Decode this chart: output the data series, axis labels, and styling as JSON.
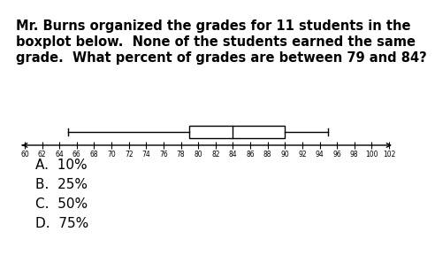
{
  "title_line1": "Mr. Burns organized the grades for 11 students in the",
  "title_line2": "boxplot below.  None of the students earned the same",
  "title_line3": "grade.  What percent of grades are between 79 and 84?",
  "whisker_min": 65,
  "q1": 79,
  "median": 84,
  "q3": 90,
  "whisker_max": 95,
  "axis_min": 60,
  "axis_max": 102,
  "tick_step": 2,
  "choices": [
    "A.  10%",
    "B.  25%",
    "C.  50%",
    "D.  75%"
  ],
  "box_color": "white",
  "box_edge_color": "black",
  "line_color": "black",
  "background_color": "white",
  "text_color": "black",
  "title_fontsize": 10.5,
  "choices_fontsize": 11
}
